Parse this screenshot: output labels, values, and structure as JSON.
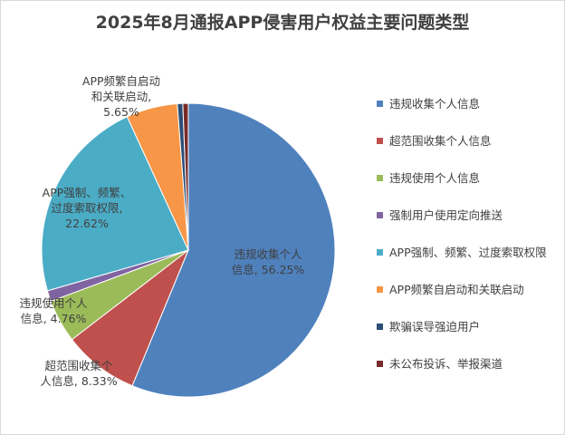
{
  "chart_data": {
    "type": "pie",
    "title": "2025年8月通报APP侵害用户权益主要问题类型",
    "legend_position": "right",
    "slices": [
      {
        "name": "违规收集个人信息",
        "value": 56.25,
        "color": "#4f81bd",
        "label_lines": [
          "违规收集个人",
          "信息, 56.25%"
        ]
      },
      {
        "name": "超范围收集个人信息",
        "value": 8.33,
        "color": "#c0504d",
        "label_lines": [
          "超范围收集个",
          "人信息, 8.33%"
        ]
      },
      {
        "name": "违规使用个人信息",
        "value": 4.76,
        "color": "#9bbb59",
        "label_lines": [
          "违规使用个人",
          "信息, 4.76%"
        ]
      },
      {
        "name": "强制用户使用定向推送",
        "value": 1.19,
        "color": "#8064a2",
        "label_lines": []
      },
      {
        "name": "APP强制、频繁、过度索取权限",
        "value": 22.62,
        "color": "#4bacc6",
        "label_lines": [
          "APP强制、频繁、",
          "过度索取权限,",
          "22.62%"
        ]
      },
      {
        "name": "APP频繁自启动和关联启动",
        "value": 5.65,
        "color": "#f79646",
        "label_lines": [
          "APP频繁自启动",
          "和关联启动,",
          "5.65%"
        ]
      },
      {
        "name": "欺骗误导强迫用户",
        "value": 0.6,
        "color": "#2c4d75",
        "label_lines": []
      },
      {
        "name": "未公布投诉、举报渠道",
        "value": 0.6,
        "color": "#772c2a",
        "label_lines": []
      }
    ]
  }
}
